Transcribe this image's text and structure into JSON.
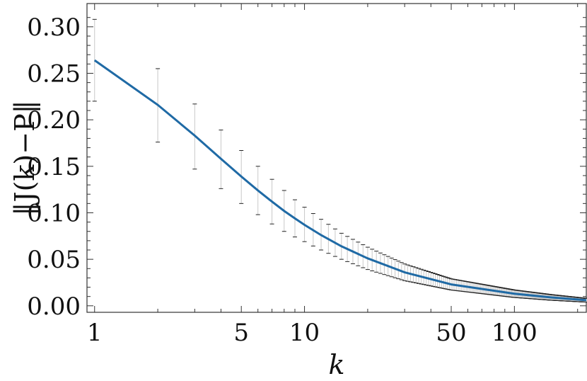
{
  "chart_data": {
    "type": "line",
    "xscale": "log",
    "xlabel": "k",
    "ylabel": "‖J(k)−P‖",
    "xlim": [
      0.92,
      220
    ],
    "ylim": [
      -0.007,
      0.325
    ],
    "x_ticks": [
      1,
      5,
      10,
      50,
      100
    ],
    "x_tick_labels": [
      "1",
      "5",
      "10",
      "50",
      "100"
    ],
    "y_ticks": [
      0.0,
      0.05,
      0.1,
      0.15,
      0.2,
      0.25,
      0.3
    ],
    "y_tick_labels": [
      "0.00",
      "0.05",
      "0.10",
      "0.15",
      "0.20",
      "0.25",
      "0.30"
    ],
    "grid": false,
    "colors": {
      "line": "#1f6aa5",
      "errorbar": "#c8c8c8",
      "errorcap": "#222222"
    },
    "series": [
      {
        "x": [
          1,
          2,
          3,
          4,
          5,
          6,
          7,
          8,
          9,
          10,
          12,
          15,
          20,
          30,
          50,
          100,
          150,
          220
        ],
        "y": [
          0.264,
          0.216,
          0.183,
          0.158,
          0.139,
          0.124,
          0.112,
          0.102,
          0.094,
          0.087,
          0.076,
          0.064,
          0.051,
          0.036,
          0.023,
          0.013,
          0.009,
          0.006
        ],
        "err_low": [
          0.22,
          0.176,
          0.147,
          0.126,
          0.11,
          0.098,
          0.088,
          0.08,
          0.074,
          0.069,
          0.06,
          0.05,
          0.039,
          0.027,
          0.017,
          0.009,
          0.006,
          0.004
        ],
        "err_high": [
          0.308,
          0.255,
          0.217,
          0.189,
          0.167,
          0.15,
          0.136,
          0.124,
          0.114,
          0.106,
          0.093,
          0.078,
          0.063,
          0.045,
          0.029,
          0.017,
          0.012,
          0.008
        ]
      }
    ]
  }
}
